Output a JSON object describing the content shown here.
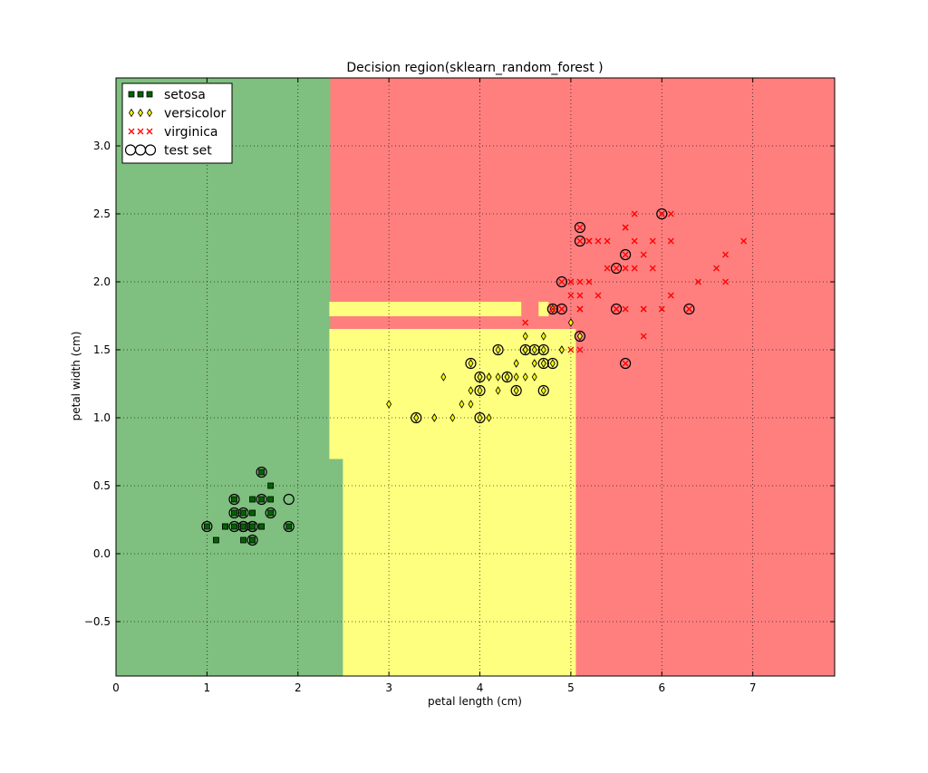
{
  "chart_data": {
    "type": "scatter",
    "title": "Decision region(sklearn_random_forest )",
    "xlabel": "petal length (cm)",
    "ylabel": "petal width (cm)",
    "xlim": [
      0,
      7.9
    ],
    "ylim": [
      -0.9,
      3.5
    ],
    "x_ticks": [
      0,
      1,
      2,
      3,
      4,
      5,
      6,
      7
    ],
    "y_ticks": [
      -0.5,
      0.0,
      0.5,
      1.0,
      1.5,
      2.0,
      2.5,
      3.0
    ],
    "x_tick_labels": [
      "0",
      "1",
      "2",
      "3",
      "4",
      "5",
      "6",
      "7"
    ],
    "y_tick_labels": [
      "−0.5",
      "0.0",
      "0.5",
      "1.0",
      "1.5",
      "2.0",
      "2.5",
      "3.0"
    ],
    "grid": true,
    "legend_position": "top-left",
    "colors": {
      "setosa_region": "#7fbf7f",
      "versicolor_region": "#ffff7f",
      "virginica_region": "#ff7f7f",
      "setosa_marker": "#006400",
      "versicolor_marker": "#ffff00",
      "virginica_marker": "#ff0000"
    },
    "regions": [
      {
        "class": "setosa",
        "polygon": [
          [
            0,
            -0.9
          ],
          [
            2.5,
            -0.9
          ],
          [
            2.5,
            0.7
          ],
          [
            2.35,
            0.7
          ],
          [
            2.35,
            3.5
          ],
          [
            0,
            3.5
          ]
        ]
      },
      {
        "class": "versicolor",
        "polygon": [
          [
            2.5,
            -0.9
          ],
          [
            5.05,
            -0.9
          ],
          [
            5.05,
            1.65
          ],
          [
            2.35,
            1.65
          ],
          [
            2.35,
            0.7
          ],
          [
            2.5,
            0.7
          ]
        ]
      },
      {
        "class": "versicolor",
        "polygon": [
          [
            2.35,
            1.75
          ],
          [
            4.45,
            1.75
          ],
          [
            4.45,
            1.85
          ],
          [
            2.35,
            1.85
          ]
        ]
      },
      {
        "class": "versicolor",
        "polygon": [
          [
            4.65,
            1.75
          ],
          [
            4.75,
            1.75
          ],
          [
            4.75,
            1.85
          ],
          [
            4.65,
            1.85
          ]
        ]
      }
    ],
    "series": [
      {
        "name": "setosa",
        "marker": "square",
        "points": [
          [
            1.4,
            0.2
          ],
          [
            1.3,
            0.2
          ],
          [
            1.5,
            0.2
          ],
          [
            1.7,
            0.4
          ],
          [
            1.5,
            0.1
          ],
          [
            1.6,
            0.2
          ],
          [
            1.4,
            0.1
          ],
          [
            1.1,
            0.1
          ],
          [
            1.2,
            0.2
          ],
          [
            1.5,
            0.4
          ],
          [
            1.3,
            0.4
          ],
          [
            1.7,
            0.3
          ],
          [
            1.5,
            0.3
          ],
          [
            1.0,
            0.2
          ],
          [
            1.9,
            0.2
          ],
          [
            1.6,
            0.4
          ],
          [
            1.4,
            0.3
          ],
          [
            1.6,
            0.6
          ],
          [
            1.3,
            0.3
          ],
          [
            1.2,
            0.2
          ],
          [
            1.5,
            0.2
          ],
          [
            1.4,
            0.2
          ],
          [
            1.6,
            0.2
          ],
          [
            1.7,
            0.5
          ],
          [
            1.5,
            0.1
          ]
        ]
      },
      {
        "name": "versicolor",
        "marker": "diamond",
        "points": [
          [
            4.7,
            1.4
          ],
          [
            4.5,
            1.5
          ],
          [
            4.9,
            1.5
          ],
          [
            4.0,
            1.3
          ],
          [
            4.6,
            1.5
          ],
          [
            4.5,
            1.3
          ],
          [
            4.7,
            1.6
          ],
          [
            3.3,
            1.0
          ],
          [
            4.6,
            1.3
          ],
          [
            3.9,
            1.4
          ],
          [
            3.5,
            1.0
          ],
          [
            4.2,
            1.5
          ],
          [
            4.0,
            1.0
          ],
          [
            4.7,
            1.4
          ],
          [
            3.6,
            1.3
          ],
          [
            4.4,
            1.4
          ],
          [
            4.5,
            1.5
          ],
          [
            4.1,
            1.0
          ],
          [
            4.5,
            1.5
          ],
          [
            3.9,
            1.1
          ],
          [
            4.8,
            1.8
          ],
          [
            4.0,
            1.3
          ],
          [
            4.9,
            1.5
          ],
          [
            4.7,
            1.2
          ],
          [
            4.3,
            1.3
          ],
          [
            4.4,
            1.4
          ],
          [
            4.8,
            1.4
          ],
          [
            5.0,
            1.7
          ],
          [
            4.5,
            1.5
          ],
          [
            3.5,
            1.0
          ],
          [
            3.8,
            1.1
          ],
          [
            3.7,
            1.0
          ],
          [
            3.9,
            1.2
          ],
          [
            5.1,
            1.6
          ],
          [
            4.5,
            1.5
          ],
          [
            4.5,
            1.6
          ],
          [
            4.7,
            1.5
          ],
          [
            4.4,
            1.3
          ],
          [
            4.1,
            1.3
          ],
          [
            4.0,
            1.3
          ],
          [
            4.4,
            1.2
          ],
          [
            4.6,
            1.4
          ],
          [
            4.0,
            1.2
          ],
          [
            3.3,
            1.0
          ],
          [
            4.2,
            1.3
          ],
          [
            4.2,
            1.2
          ],
          [
            4.3,
            1.3
          ],
          [
            3.0,
            1.1
          ],
          [
            4.1,
            1.3
          ],
          [
            4.6,
            1.4
          ]
        ]
      },
      {
        "name": "virginica",
        "marker": "x",
        "points": [
          [
            6.0,
            2.5
          ],
          [
            5.1,
            1.9
          ],
          [
            5.9,
            2.1
          ],
          [
            5.6,
            1.8
          ],
          [
            5.8,
            2.2
          ],
          [
            6.6,
            2.1
          ],
          [
            4.5,
            1.7
          ],
          [
            6.3,
            1.8
          ],
          [
            5.8,
            1.8
          ],
          [
            6.1,
            2.5
          ],
          [
            5.1,
            2.0
          ],
          [
            5.3,
            1.9
          ],
          [
            5.5,
            2.1
          ],
          [
            5.0,
            2.0
          ],
          [
            5.1,
            2.4
          ],
          [
            5.3,
            2.3
          ],
          [
            5.5,
            1.8
          ],
          [
            6.7,
            2.2
          ],
          [
            6.9,
            2.3
          ],
          [
            5.0,
            1.5
          ],
          [
            5.7,
            2.3
          ],
          [
            4.9,
            2.0
          ],
          [
            6.7,
            2.0
          ],
          [
            4.9,
            1.8
          ],
          [
            5.7,
            2.1
          ],
          [
            6.0,
            1.8
          ],
          [
            4.8,
            1.8
          ],
          [
            4.9,
            1.8
          ],
          [
            5.6,
            2.1
          ],
          [
            5.8,
            1.6
          ],
          [
            6.1,
            1.9
          ],
          [
            6.4,
            2.0
          ],
          [
            5.6,
            2.2
          ],
          [
            5.1,
            1.5
          ],
          [
            5.6,
            1.4
          ],
          [
            6.1,
            2.3
          ],
          [
            5.6,
            2.4
          ],
          [
            5.5,
            1.8
          ],
          [
            4.8,
            1.8
          ],
          [
            5.4,
            2.1
          ],
          [
            5.6,
            2.4
          ],
          [
            5.1,
            2.3
          ],
          [
            5.9,
            2.3
          ],
          [
            5.7,
            2.5
          ],
          [
            5.2,
            2.3
          ],
          [
            5.0,
            1.9
          ],
          [
            5.2,
            2.0
          ],
          [
            5.4,
            2.3
          ],
          [
            5.1,
            1.8
          ],
          [
            5.8,
            1.8
          ],
          [
            6.3,
            1.8
          ],
          [
            5.2,
            2.3
          ],
          [
            5.0,
            2.0
          ],
          [
            5.1,
            1.8
          ]
        ]
      },
      {
        "name": "test set",
        "marker": "circle",
        "points": [
          [
            1.3,
            0.2
          ],
          [
            1.5,
            0.2
          ],
          [
            1.4,
            0.2
          ],
          [
            1.5,
            0.1
          ],
          [
            1.6,
            0.4
          ],
          [
            1.3,
            0.4
          ],
          [
            1.9,
            0.4
          ],
          [
            1.0,
            0.2
          ],
          [
            1.3,
            0.3
          ],
          [
            1.4,
            0.3
          ],
          [
            1.7,
            0.3
          ],
          [
            1.6,
            0.6
          ],
          [
            1.9,
            0.2
          ],
          [
            1.5,
            0.2
          ],
          [
            1.4,
            0.2
          ],
          [
            3.3,
            1.0
          ],
          [
            4.0,
            1.0
          ],
          [
            4.7,
            1.2
          ],
          [
            4.0,
            1.2
          ],
          [
            4.0,
            1.3
          ],
          [
            4.4,
            1.2
          ],
          [
            4.2,
            1.5
          ],
          [
            3.9,
            1.4
          ],
          [
            4.3,
            1.3
          ],
          [
            4.5,
            1.5
          ],
          [
            4.6,
            1.5
          ],
          [
            4.7,
            1.5
          ],
          [
            4.7,
            1.4
          ],
          [
            4.8,
            1.4
          ],
          [
            4.9,
            1.8
          ],
          [
            4.8,
            1.8
          ],
          [
            5.1,
            1.6
          ],
          [
            5.1,
            2.4
          ],
          [
            5.1,
            2.3
          ],
          [
            4.9,
            2.0
          ],
          [
            5.6,
            2.2
          ],
          [
            5.5,
            2.1
          ],
          [
            6.0,
            2.5
          ],
          [
            5.5,
            1.8
          ],
          [
            6.3,
            1.8
          ],
          [
            5.6,
            1.4
          ]
        ]
      }
    ]
  }
}
